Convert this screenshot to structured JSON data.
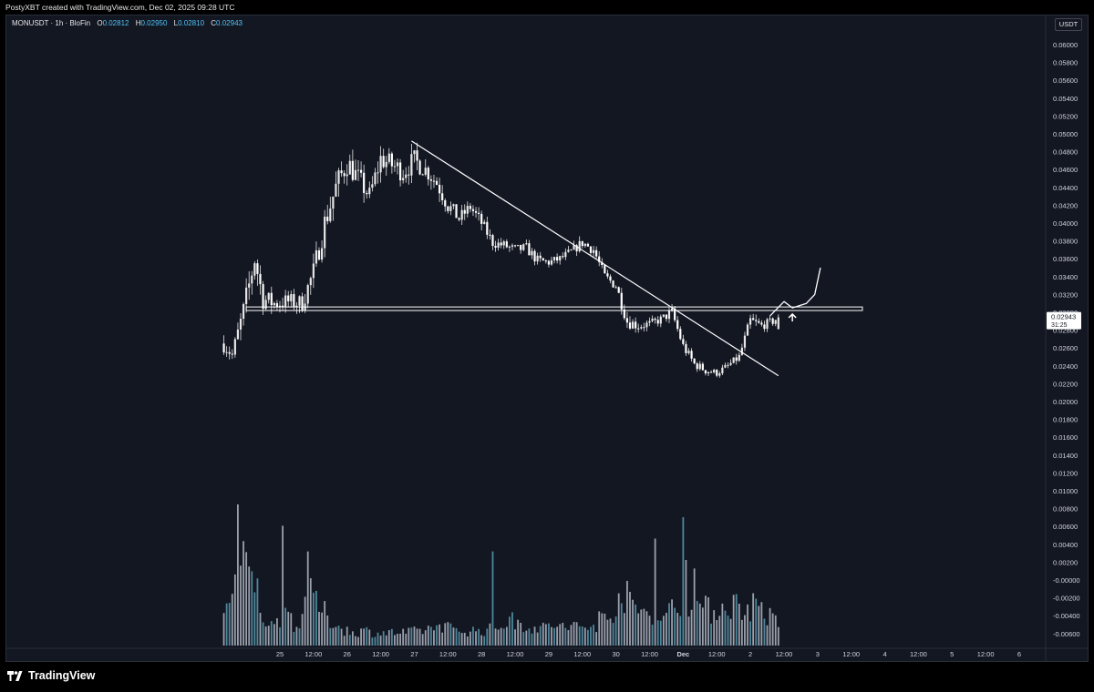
{
  "caption": "PostyXBT created with TradingView.com, Dec 02, 2025 09:28 UTC",
  "legend": {
    "symbol": "MONUSDT · 1h · BloFin",
    "open_label": "O",
    "open": "0.02812",
    "high_label": "H",
    "high": "0.02950",
    "low_label": "L",
    "low": "0.02810",
    "close_label": "C",
    "close": "0.02943"
  },
  "currency_label": "USDT",
  "brand": "TradingView",
  "price_badge": {
    "price": "0.02943",
    "countdown": "31:25"
  },
  "colors": {
    "background": "#131722",
    "candle": "#e6e6e6",
    "volume": "#b3b8c4",
    "volume_accent": "#5b9bb0",
    "legend_values": "#4fc3f7",
    "badge": "#ffffff"
  },
  "chart_data": {
    "type": "candlestick",
    "symbol": "MONUSDT",
    "interval": "1h",
    "exchange": "BloFin",
    "price_axis": {
      "ticks": [
        "0.06000",
        "0.05800",
        "0.05600",
        "0.05400",
        "0.05200",
        "0.05000",
        "0.04800",
        "0.04600",
        "0.04400",
        "0.04200",
        "0.04000",
        "0.03800",
        "0.03600",
        "0.03400",
        "0.03200",
        "0.03000",
        "0.02800",
        "0.02600",
        "0.02400",
        "0.02200",
        "0.02000",
        "0.01800",
        "0.01600",
        "0.01400",
        "0.01200",
        "0.01000",
        "0.00800",
        "0.00600",
        "0.00400",
        "0.00200",
        "-0.00000",
        "-0.00200",
        "-0.00400",
        "-0.00600"
      ],
      "main_range": [
        0.022,
        0.06
      ]
    },
    "time_axis": {
      "labels": [
        "25",
        "12:00",
        "26",
        "12:00",
        "27",
        "12:00",
        "28",
        "12:00",
        "29",
        "12:00",
        "30",
        "12:00",
        "Dec",
        "12:00",
        "2",
        "12:00",
        "3",
        "12:00",
        "4",
        "12:00",
        "5",
        "12:00",
        "6"
      ],
      "label_hours": [
        0,
        12,
        24,
        36,
        48,
        60,
        72,
        84,
        96,
        108,
        120,
        132,
        144,
        156,
        168,
        180,
        192,
        204,
        216,
        228,
        240,
        252,
        264
      ],
      "start": "Nov 25 00:00",
      "hour_range": [
        -18,
        274
      ]
    },
    "series_path": [
      [
        -20,
        0.0265,
        0.002
      ],
      [
        -17,
        0.0252,
        0.0015
      ],
      [
        -13,
        0.03,
        0.003
      ],
      [
        -9,
        0.036,
        0.003
      ],
      [
        -6,
        0.0315,
        0.0025
      ],
      [
        -2,
        0.031,
        0.002
      ],
      [
        3,
        0.0312,
        0.002
      ],
      [
        8,
        0.031,
        0.002
      ],
      [
        12,
        0.0345,
        0.0025
      ],
      [
        16,
        0.04,
        0.003
      ],
      [
        20,
        0.044,
        0.003
      ],
      [
        24,
        0.0468,
        0.003
      ],
      [
        28,
        0.045,
        0.0025
      ],
      [
        32,
        0.043,
        0.0025
      ],
      [
        36,
        0.0472,
        0.0025
      ],
      [
        40,
        0.0465,
        0.0025
      ],
      [
        44,
        0.0458,
        0.0025
      ],
      [
        48,
        0.047,
        0.0025
      ],
      [
        52,
        0.046,
        0.002
      ],
      [
        56,
        0.0445,
        0.002
      ],
      [
        60,
        0.042,
        0.002
      ],
      [
        64,
        0.0405,
        0.0015
      ],
      [
        68,
        0.0418,
        0.0015
      ],
      [
        72,
        0.04,
        0.0015
      ],
      [
        76,
        0.0378,
        0.0012
      ],
      [
        80,
        0.0375,
        0.0012
      ],
      [
        84,
        0.037,
        0.0012
      ],
      [
        88,
        0.0372,
        0.0012
      ],
      [
        92,
        0.0358,
        0.0012
      ],
      [
        96,
        0.0356,
        0.001
      ],
      [
        100,
        0.036,
        0.001
      ],
      [
        104,
        0.0368,
        0.001
      ],
      [
        108,
        0.0378,
        0.0012
      ],
      [
        112,
        0.037,
        0.0012
      ],
      [
        116,
        0.034,
        0.0012
      ],
      [
        120,
        0.033,
        0.0012
      ],
      [
        124,
        0.029,
        0.0015
      ],
      [
        128,
        0.0285,
        0.0012
      ],
      [
        132,
        0.0287,
        0.001
      ],
      [
        136,
        0.0292,
        0.001
      ],
      [
        140,
        0.03,
        0.0012
      ],
      [
        144,
        0.0262,
        0.0012
      ],
      [
        148,
        0.0242,
        0.001
      ],
      [
        152,
        0.0235,
        0.001
      ],
      [
        156,
        0.0232,
        0.0008
      ],
      [
        160,
        0.024,
        0.0008
      ],
      [
        164,
        0.025,
        0.001
      ],
      [
        168,
        0.029,
        0.0015
      ],
      [
        172,
        0.0285,
        0.001
      ],
      [
        176,
        0.029,
        0.001
      ],
      [
        178,
        0.0294,
        0.0008
      ]
    ],
    "volume_path": [
      [
        -20,
        0.9
      ],
      [
        -16,
        1.5
      ],
      [
        -13,
        1.8
      ],
      [
        -9,
        1.5
      ],
      [
        -6,
        0.7
      ],
      [
        -2,
        0.4
      ],
      [
        2,
        0.9
      ],
      [
        6,
        0.4
      ],
      [
        10,
        1.2
      ],
      [
        14,
        0.9
      ],
      [
        18,
        0.6
      ],
      [
        22,
        0.4
      ],
      [
        26,
        0.3
      ],
      [
        30,
        0.35
      ],
      [
        34,
        0.3
      ],
      [
        38,
        0.3
      ],
      [
        42,
        0.3
      ],
      [
        46,
        0.3
      ],
      [
        50,
        0.35
      ],
      [
        54,
        0.4
      ],
      [
        58,
        0.5
      ],
      [
        62,
        0.35
      ],
      [
        66,
        0.35
      ],
      [
        70,
        0.35
      ],
      [
        74,
        0.35
      ],
      [
        78,
        0.45
      ],
      [
        82,
        0.6
      ],
      [
        86,
        0.5
      ],
      [
        90,
        0.45
      ],
      [
        94,
        0.4
      ],
      [
        98,
        0.5
      ],
      [
        102,
        0.4
      ],
      [
        106,
        0.45
      ],
      [
        110,
        0.4
      ],
      [
        114,
        0.55
      ],
      [
        118,
        0.7
      ],
      [
        122,
        1.3
      ],
      [
        126,
        0.9
      ],
      [
        130,
        0.8
      ],
      [
        134,
        0.8
      ],
      [
        138,
        0.7
      ],
      [
        142,
        1.0
      ],
      [
        146,
        1.1
      ],
      [
        150,
        0.9
      ],
      [
        154,
        0.8
      ],
      [
        158,
        0.9
      ],
      [
        162,
        1.0
      ],
      [
        166,
        0.8
      ],
      [
        170,
        1.0
      ],
      [
        174,
        0.7
      ],
      [
        178,
        0.5
      ]
    ],
    "volume_spikes": [
      [
        -15,
        3.3
      ],
      [
        1,
        2.8
      ],
      [
        10,
        2.2
      ],
      [
        76,
        2.2
      ],
      [
        114,
        0.8
      ],
      [
        134,
        2.5
      ],
      [
        144,
        3.0
      ],
      [
        145,
        2.0
      ],
      [
        148,
        1.8
      ]
    ],
    "annotations": [
      {
        "type": "trendline",
        "from": [
          47,
          0.0492
        ],
        "to": [
          178,
          0.0229
        ]
      },
      {
        "type": "horizontal_band",
        "y": [
          0.0302,
          0.0306
        ],
        "x": [
          -12,
          208
        ]
      },
      {
        "type": "projection_path",
        "points": [
          [
            175,
            0.0296
          ],
          [
            180,
            0.0312
          ],
          [
            183,
            0.0305
          ],
          [
            188,
            0.031
          ],
          [
            191,
            0.032
          ],
          [
            193,
            0.035
          ]
        ]
      },
      {
        "type": "arrow_up",
        "at": [
          183,
          0.0298
        ]
      }
    ]
  }
}
